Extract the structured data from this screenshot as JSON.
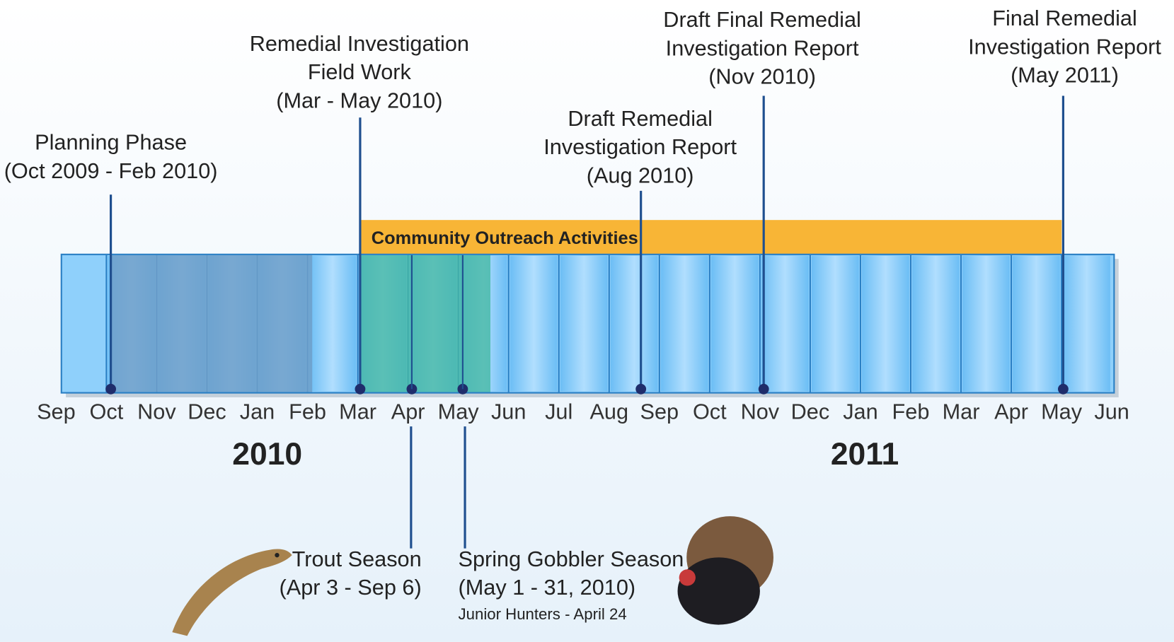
{
  "months": [
    "Sep",
    "Oct",
    "Nov",
    "Dec",
    "Jan",
    "Feb",
    "Mar",
    "Apr",
    "May",
    "Jun",
    "Jul",
    "Aug",
    "Sep",
    "Oct",
    "Nov",
    "Dec",
    "Jan",
    "Feb",
    "Mar",
    "Apr",
    "May",
    "Jun"
  ],
  "years": [
    "2010",
    "2011"
  ],
  "outreach": "Community Outreach Activities",
  "milestones": [
    {
      "lines": [
        "Planning Phase",
        "(Oct 2009 - Feb 2010)"
      ]
    },
    {
      "lines": [
        "Remedial Investigation",
        "Field Work",
        "(Mar - May 2010)"
      ]
    },
    {
      "lines": [
        "Draft Remedial",
        "Investigation Report",
        "(Aug 2010)"
      ]
    },
    {
      "lines": [
        "Draft Final Remedial",
        "Investigation Report",
        "(Nov 2010)"
      ]
    },
    {
      "lines": [
        "Final Remedial",
        "Investigation Report",
        "(May 2011)"
      ]
    }
  ],
  "seasons": [
    {
      "lines": [
        "Trout Season",
        "(Apr 3 - Sep 6)"
      ]
    },
    {
      "lines": [
        "Spring Gobbler Season",
        "(May 1 - 31, 2010)"
      ],
      "note": "Junior Hunters - April 24"
    }
  ]
}
